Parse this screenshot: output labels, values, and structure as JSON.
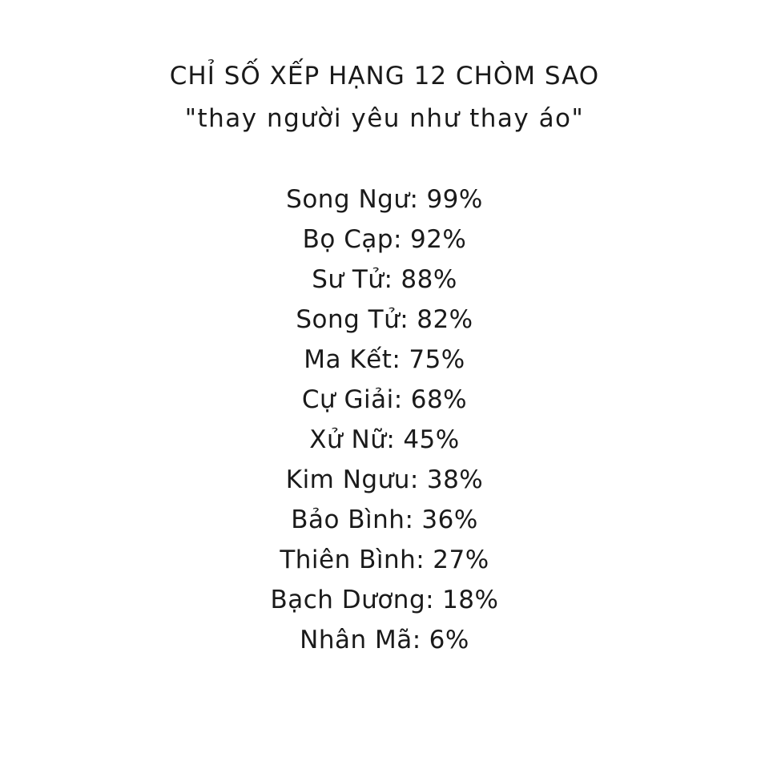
{
  "header": {
    "title": "CHỈ SỐ XẾP HẠNG 12 CHÒM SAO",
    "subtitle": "\"thay người yêu như thay áo\""
  },
  "rankings": [
    {
      "sign": "Song Ngư",
      "value": "99%"
    },
    {
      "sign": "Bọ Cạp",
      "value": "92%"
    },
    {
      "sign": "Sư Tử",
      "value": "88%"
    },
    {
      "sign": "Song Tử",
      "value": "82%"
    },
    {
      "sign": "Ma Kết",
      "value": "75%"
    },
    {
      "sign": "Cự Giải",
      "value": "68%"
    },
    {
      "sign": "Xử Nữ",
      "value": "45%"
    },
    {
      "sign": "Kim Ngưu",
      "value": "38%"
    },
    {
      "sign": "Bảo Bình",
      "value": "36%"
    },
    {
      "sign": "Thiên Bình",
      "value": "27%"
    },
    {
      "sign": "Bạch Dương",
      "value": "18%"
    },
    {
      "sign": "Nhân Mã",
      "value": "6%"
    }
  ]
}
